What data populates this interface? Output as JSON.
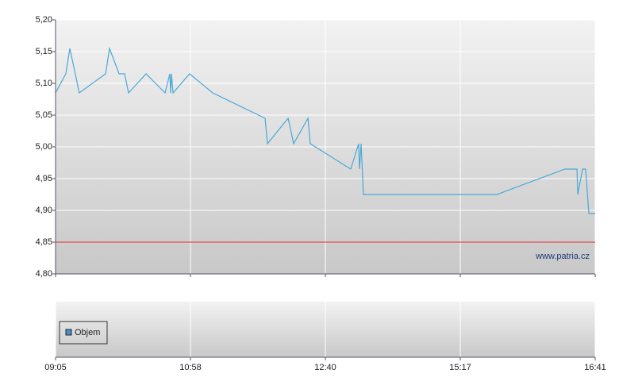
{
  "chart_data": {
    "type": "line",
    "xlim": [
      0,
      4
    ],
    "xticks": [
      {
        "value": 0,
        "label": "09:05"
      },
      {
        "value": 1,
        "label": "10:58"
      },
      {
        "value": 2,
        "label": "12:40"
      },
      {
        "value": 3,
        "label": "15:17"
      },
      {
        "value": 4,
        "label": "16:41"
      }
    ],
    "ylim": [
      4.8,
      5.2
    ],
    "yticks": [
      {
        "value": 4.8,
        "label": "4,80"
      },
      {
        "value": 4.85,
        "label": "4,85"
      },
      {
        "value": 4.9,
        "label": "4,90"
      },
      {
        "value": 4.95,
        "label": "4,95"
      },
      {
        "value": 5.0,
        "label": "5,00"
      },
      {
        "value": 5.05,
        "label": "5,05"
      },
      {
        "value": 5.1,
        "label": "5,10"
      },
      {
        "value": 5.15,
        "label": "5,15"
      },
      {
        "value": 5.2,
        "label": "5,20"
      }
    ],
    "grid": true,
    "x": [
      0,
      0.076,
      0.106,
      0.176,
      0.371,
      0.4,
      0.471,
      0.512,
      0.541,
      0.671,
      0.812,
      0.847,
      0.853,
      0.859,
      0.871,
      0.994,
      1.165,
      1.553,
      1.571,
      1.724,
      1.765,
      1.871,
      1.888,
      2.188,
      2.247,
      2.253,
      2.265,
      2.282,
      3.271,
      3.776,
      3.865,
      3.871,
      3.906,
      3.929,
      3.953,
      4
    ],
    "series": [
      {
        "color": "#4aa8d8",
        "values": [
          5.085,
          5.115,
          5.155,
          5.085,
          5.115,
          5.155,
          5.115,
          5.115,
          5.085,
          5.115,
          5.085,
          5.115,
          5.085,
          5.115,
          5.085,
          5.115,
          5.085,
          5.045,
          5.005,
          5.045,
          5.005,
          5.045,
          5.005,
          4.965,
          5.005,
          4.965,
          5.005,
          4.925,
          4.925,
          4.965,
          4.965,
          4.925,
          4.965,
          4.965,
          4.895,
          4.895
        ]
      }
    ],
    "reference_line": {
      "value": 4.85,
      "color": "#e03030"
    },
    "watermark": "www.patria.cz",
    "volume_panel": {
      "legend": {
        "name": "Objem",
        "color": "#4a90c8"
      }
    }
  }
}
